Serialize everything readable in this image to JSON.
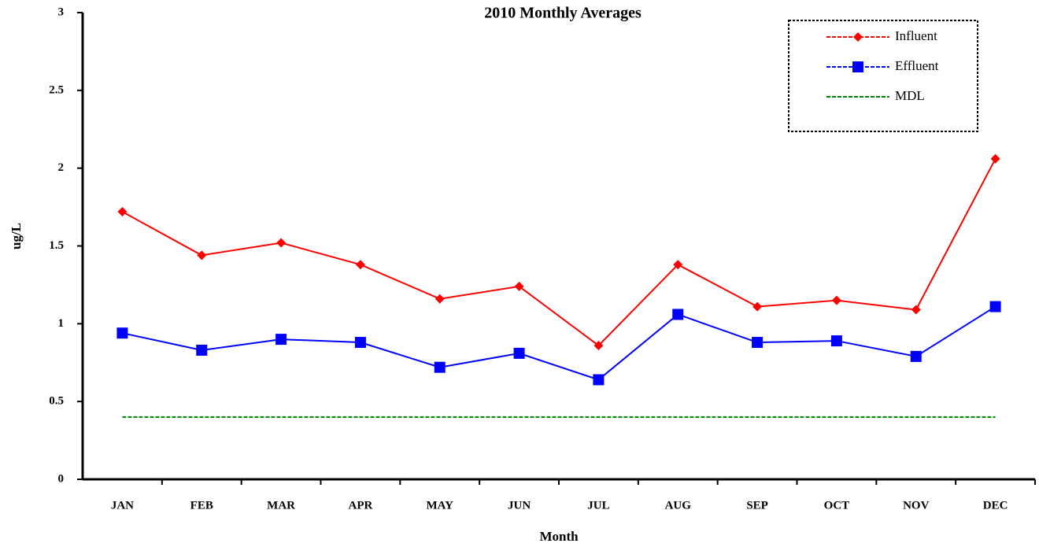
{
  "chart_data": {
    "type": "line",
    "title": "2010 Monthly Averages",
    "x_label": "Month",
    "y_label": "ug/L",
    "categories": [
      "JAN",
      "FEB",
      "MAR",
      "APR",
      "MAY",
      "JUN",
      "JUL",
      "AUG",
      "SEP",
      "OCT",
      "NOV",
      "DEC"
    ],
    "series": [
      {
        "name": "Influent",
        "color": "#ff0000",
        "marker": "diamond",
        "linestyle": "solid",
        "values": [
          1.72,
          1.44,
          1.52,
          1.38,
          1.16,
          1.24,
          0.86,
          1.38,
          1.11,
          1.15,
          1.09,
          2.06
        ]
      },
      {
        "name": "Effluent",
        "color": "#0000ff",
        "marker": "square",
        "linestyle": "solid",
        "values": [
          0.94,
          0.83,
          0.9,
          0.88,
          0.72,
          0.81,
          0.64,
          1.06,
          0.88,
          0.89,
          0.79,
          1.11
        ]
      },
      {
        "name": "MDL",
        "color": "#008000",
        "marker": null,
        "linestyle": "dashed",
        "values": [
          0.4,
          0.4,
          0.4,
          0.4,
          0.4,
          0.4,
          0.4,
          0.4,
          0.4,
          0.4,
          0.4,
          0.4
        ]
      }
    ],
    "ylim": [
      0,
      3
    ],
    "yticks": [
      0,
      0.5,
      1,
      1.5,
      2,
      2.5,
      3
    ],
    "grid": false,
    "legend": "top-right"
  }
}
